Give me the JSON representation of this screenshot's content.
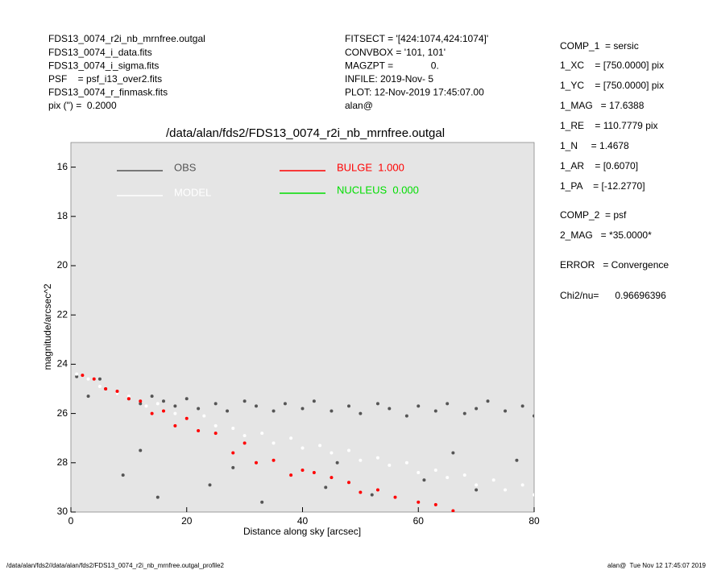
{
  "header": {
    "left": [
      "FDS13_0074_r2i_nb_mrnfree.outgal",
      "FDS13_0074_i_data.fits",
      "FDS13_0074_i_sigma.fits",
      "PSF    = psf_i13_over2.fits",
      "FDS13_0074_r_finmask.fits",
      "pix (\") =  0.2000"
    ],
    "middle": [
      "FITSECT = '[424:1074,424:1074]'",
      "CONVBOX = '101, 101'",
      "MAGZPT =              0.",
      "INFILE: 2019-Nov- 5",
      "PLOT: 12-Nov-2019 17:45:07.00",
      "alan@"
    ],
    "right": [
      "COMP_1  = sersic",
      "1_XC    = [750.0000] pix",
      "1_YC    = [750.0000] pix",
      "1_MAG   = 17.6388",
      "1_RE    = 110.7779 pix",
      "1_N     = 1.4678",
      "1_AR    = [0.6070]",
      "1_PA    = [-12.2770]",
      "COMP_2  = psf",
      "2_MAG   = *35.0000*",
      "ERROR   = Convergence",
      "Chi2/nu=      0.96696396"
    ]
  },
  "chart_data": {
    "type": "scatter",
    "title": "/data/alan/fds2/FDS13_0074_r2i_nb_mrnfree.outgal",
    "x_label": "Distance along sky [arcsec]",
    "y_label": "magnitude/arcsec^2",
    "xlim": [
      0,
      80
    ],
    "xticks": [
      0,
      20,
      40,
      60,
      80
    ],
    "ylim": [
      30,
      15
    ],
    "yticks": [
      16,
      18,
      20,
      22,
      24,
      26,
      28,
      30
    ],
    "series": [
      {
        "name": "OBS",
        "color": "#555555",
        "x": [
          1,
          3,
          5,
          6,
          8,
          10,
          12,
          14,
          16,
          18,
          20,
          22,
          25,
          27,
          30,
          32,
          35,
          37,
          40,
          42,
          45,
          48,
          50,
          53,
          55,
          58,
          60,
          63,
          65,
          68,
          70,
          72,
          75,
          78,
          80,
          9,
          15,
          24,
          33,
          44,
          52,
          61,
          70,
          77,
          12,
          28,
          46,
          66
        ],
        "values": [
          24.5,
          25.3,
          24.6,
          25.0,
          25.2,
          25.4,
          25.6,
          25.3,
          25.5,
          25.7,
          25.4,
          25.8,
          25.6,
          25.9,
          25.5,
          25.7,
          25.9,
          25.6,
          25.8,
          25.5,
          25.9,
          25.7,
          26.0,
          25.6,
          25.8,
          26.1,
          25.7,
          25.9,
          25.6,
          26.0,
          25.8,
          25.5,
          25.9,
          25.7,
          26.1,
          28.5,
          29.4,
          28.9,
          29.6,
          29.0,
          29.3,
          28.7,
          29.1,
          27.9,
          27.5,
          28.2,
          28.0,
          27.6
        ]
      },
      {
        "name": "MODEL",
        "color": "#ffffff",
        "x": [
          1,
          3,
          5,
          8,
          10,
          13,
          15,
          18,
          20,
          23,
          25,
          28,
          30,
          33,
          35,
          38,
          40,
          43,
          45,
          48,
          50,
          53,
          55,
          58,
          60,
          63,
          65,
          68,
          70,
          73,
          75,
          78,
          80
        ],
        "values": [
          24.4,
          24.6,
          24.9,
          25.2,
          25.3,
          25.7,
          25.6,
          26.0,
          26.2,
          26.1,
          26.5,
          26.6,
          26.9,
          26.8,
          27.2,
          27.0,
          27.4,
          27.3,
          27.6,
          27.5,
          27.9,
          27.8,
          28.1,
          28.0,
          28.4,
          28.3,
          28.6,
          28.5,
          28.9,
          28.7,
          29.1,
          28.9,
          29.3
        ]
      },
      {
        "name": "BULGE  1.000",
        "color": "#ff0000",
        "x": [
          2,
          4,
          6,
          8,
          10,
          12,
          14,
          16,
          18,
          20,
          22,
          25,
          28,
          30,
          32,
          35,
          38,
          40,
          42,
          45,
          48,
          50,
          53,
          56,
          60,
          63,
          66
        ],
        "values": [
          24.45,
          24.6,
          25.0,
          25.1,
          25.4,
          25.5,
          26.0,
          25.9,
          26.5,
          26.2,
          26.7,
          26.8,
          27.6,
          27.2,
          28.0,
          27.9,
          28.5,
          28.3,
          28.4,
          28.6,
          28.8,
          29.2,
          29.1,
          29.4,
          29.6,
          29.7,
          29.95
        ]
      },
      {
        "name": "NUCLEUS  0.000",
        "color": "#00dd00",
        "x": [],
        "values": []
      }
    ]
  },
  "footer": {
    "left": "/data/alan/fds2//data/alan/fds2/FDS13_0074_r2i_nb_mrnfree.outgal_profile2",
    "right": "alan@  Tue Nov 12 17:45:07 2019"
  }
}
